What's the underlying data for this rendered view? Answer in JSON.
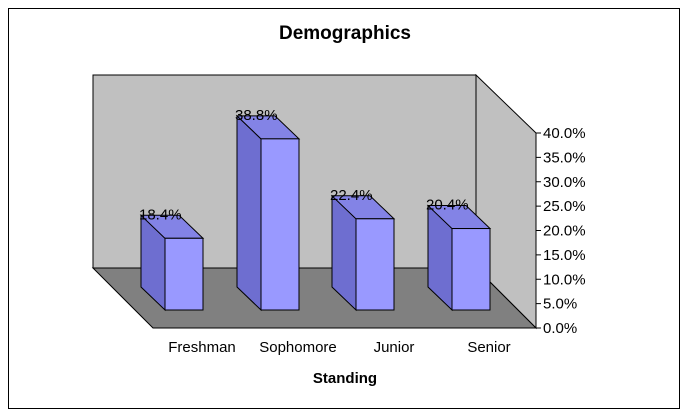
{
  "chart_data": {
    "type": "bar",
    "title": "Demographics",
    "xlabel": "Standing",
    "ylabel": "",
    "categories": [
      "Freshman",
      "Sophomore",
      "Junior",
      "Senior"
    ],
    "values": [
      18.4,
      38.8,
      22.4,
      20.4
    ],
    "data_labels": [
      "18.4%",
      "38.8%",
      "22.4%",
      "20.4%"
    ],
    "ylim": [
      0,
      40
    ],
    "yticks": [
      "0.0%",
      "5.0%",
      "10.0%",
      "15.0%",
      "20.0%",
      "25.0%",
      "30.0%",
      "35.0%",
      "40.0%"
    ],
    "grid": false,
    "legend": "none",
    "style": "3d-column",
    "colors": {
      "bar_front": "#9999ff",
      "bar_side": "#6e6ed0",
      "bar_top": "#8383e6",
      "back_wall": "#c0c0c0",
      "floor": "#808080",
      "side_wall": "#c0c0c0"
    }
  }
}
